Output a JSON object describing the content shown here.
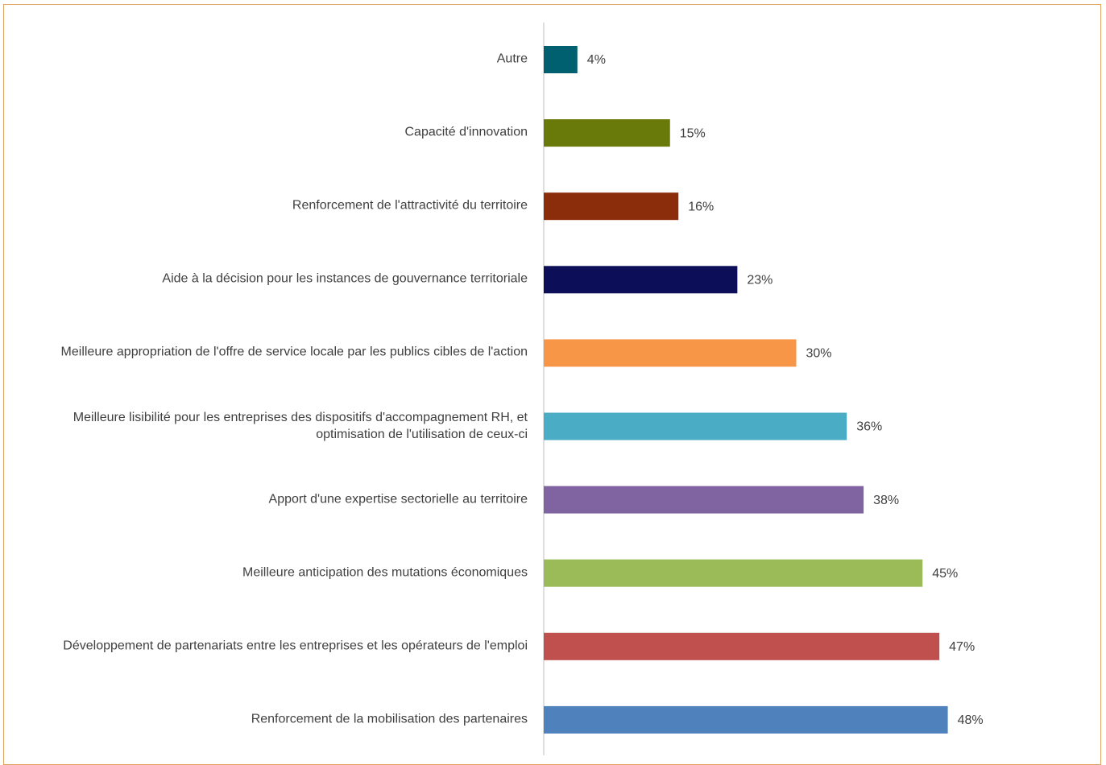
{
  "chart_data": {
    "type": "bar",
    "orientation": "horizontal",
    "categories": [
      "Autre",
      "Capacité d'innovation",
      "Renforcement de l'attractivité du territoire",
      "Aide à la décision pour les instances de gouvernance territoriale",
      "Meilleure appropriation de l'offre de service locale par les publics cibles de l'action",
      "Meilleure lisibilité pour les entreprises des dispositifs d'accompagnement RH, et optimisation de l'utilisation de ceux-ci",
      "Apport d'une expertise sectorielle au territoire",
      "Meilleure anticipation des mutations économiques",
      "Développement de partenariats entre les entreprises et les opérateurs de l'emploi",
      "Renforcement de la mobilisation des partenaires"
    ],
    "values": [
      4,
      15,
      16,
      23,
      30,
      36,
      38,
      45,
      47,
      48
    ],
    "value_labels": [
      "4%",
      "15%",
      "16%",
      "23%",
      "30%",
      "36%",
      "38%",
      "45%",
      "47%",
      "48%"
    ],
    "colors": [
      "#00606f",
      "#6a7a0a",
      "#8b2d0a",
      "#0c0f57",
      "#f79646",
      "#4bacc6",
      "#8064a2",
      "#9bbb59",
      "#c0504d",
      "#4f81bd"
    ]
  }
}
